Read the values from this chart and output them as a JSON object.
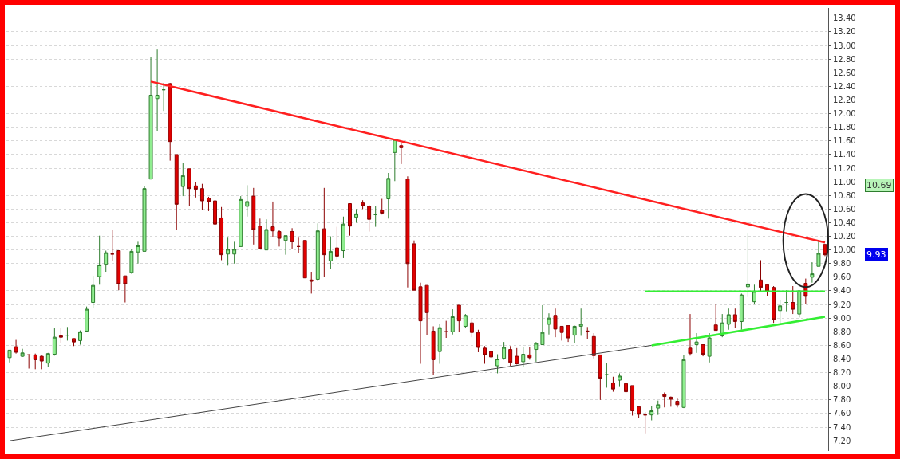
{
  "chart_data": {
    "type": "candlestick",
    "categories": [
      null,
      null,
      null,
      null,
      null,
      null,
      null,
      null,
      null,
      null,
      null,
      null,
      null,
      null,
      null,
      null,
      null,
      null,
      null,
      null,
      null,
      null,
      null,
      null,
      null,
      null,
      null,
      null,
      null,
      null,
      null,
      null,
      null,
      null,
      null,
      null,
      null,
      null,
      null,
      null,
      null,
      null,
      null,
      null,
      null,
      null,
      null,
      null,
      null,
      null,
      null,
      null,
      null,
      null,
      null,
      null,
      null,
      null,
      null,
      null,
      null,
      null,
      null,
      null,
      null,
      null,
      null,
      null,
      null,
      null,
      null,
      null,
      null,
      null,
      null,
      null,
      null,
      null,
      null,
      null,
      null,
      null,
      null,
      null,
      null,
      null,
      null,
      null,
      null,
      null,
      null,
      null,
      null,
      null,
      null,
      null,
      null,
      null,
      null,
      null,
      null,
      null,
      null,
      null,
      null,
      null,
      null,
      null,
      null,
      null,
      null,
      null,
      null,
      null,
      null,
      null,
      null,
      null,
      null,
      null,
      null,
      null,
      null,
      null,
      null,
      null,
      null,
      null
    ],
    "ohlc": [
      [
        8.42,
        8.53,
        8.35,
        8.53
      ],
      [
        8.58,
        8.68,
        8.48,
        8.5
      ],
      [
        8.44,
        8.55,
        8.43,
        8.49
      ],
      [
        8.46,
        8.47,
        8.26,
        8.46
      ],
      [
        8.46,
        8.48,
        8.25,
        8.39
      ],
      [
        8.44,
        8.45,
        8.25,
        8.37
      ],
      [
        8.34,
        8.49,
        8.28,
        8.48
      ],
      [
        8.47,
        8.85,
        8.45,
        8.72
      ],
      [
        8.74,
        8.85,
        8.64,
        8.72
      ],
      [
        8.75,
        8.87,
        8.67,
        8.75
      ],
      [
        8.7,
        8.7,
        8.59,
        8.65
      ],
      [
        8.67,
        8.82,
        8.61,
        8.8
      ],
      [
        8.81,
        9.17,
        8.8,
        9.13
      ],
      [
        9.23,
        9.62,
        9.15,
        9.48
      ],
      [
        9.61,
        10.21,
        9.49,
        9.78
      ],
      [
        9.79,
        9.99,
        9.68,
        9.96
      ],
      [
        9.94,
        10.3,
        9.84,
        9.94
      ],
      [
        9.99,
        9.99,
        9.41,
        9.5
      ],
      [
        9.62,
        9.62,
        9.23,
        9.5
      ],
      [
        9.67,
        10.01,
        9.65,
        9.98
      ],
      [
        9.97,
        10.12,
        9.8,
        10.06
      ],
      [
        9.98,
        10.94,
        9.98,
        10.9
      ],
      [
        11.04,
        12.83,
        11.04,
        12.27
      ],
      [
        12.22,
        12.94,
        11.74,
        12.27
      ],
      [
        12.35,
        12.45,
        12.04,
        12.35
      ],
      [
        12.44,
        12.45,
        11.31,
        11.59
      ],
      [
        11.4,
        11.4,
        10.3,
        10.67
      ],
      [
        10.93,
        11.27,
        10.79,
        11.09
      ],
      [
        11.19,
        11.19,
        10.65,
        10.9
      ],
      [
        10.94,
        10.99,
        10.77,
        10.89
      ],
      [
        10.9,
        10.97,
        10.59,
        10.72
      ],
      [
        10.76,
        10.78,
        10.57,
        10.71
      ],
      [
        10.72,
        10.72,
        10.3,
        10.38
      ],
      [
        10.47,
        10.63,
        9.85,
        9.93
      ],
      [
        9.94,
        10.18,
        9.77,
        10.01
      ],
      [
        9.94,
        10.12,
        9.8,
        10.01
      ],
      [
        10.05,
        10.79,
        10.05,
        10.74
      ],
      [
        10.64,
        10.95,
        10.49,
        10.71
      ],
      [
        10.79,
        10.91,
        10.08,
        10.3
      ],
      [
        10.35,
        10.46,
        10.01,
        10.02
      ],
      [
        10.0,
        10.45,
        10.0,
        10.3
      ],
      [
        10.34,
        10.71,
        10.19,
        10.28
      ],
      [
        10.27,
        10.3,
        10.05,
        10.17
      ],
      [
        10.14,
        10.21,
        9.93,
        10.21
      ],
      [
        10.27,
        10.32,
        10.02,
        10.12
      ],
      [
        10.05,
        10.18,
        9.96,
        10.05
      ],
      [
        10.14,
        10.14,
        9.59,
        9.59
      ],
      [
        9.56,
        9.68,
        9.36,
        9.54
      ],
      [
        9.57,
        10.39,
        9.54,
        10.28
      ],
      [
        10.31,
        10.91,
        9.61,
        9.93
      ],
      [
        9.84,
        10.2,
        9.72,
        9.98
      ],
      [
        10.03,
        10.34,
        9.86,
        9.91
      ],
      [
        9.99,
        10.49,
        9.88,
        10.38
      ],
      [
        10.68,
        10.68,
        10.21,
        10.35
      ],
      [
        10.48,
        10.6,
        10.4,
        10.53
      ],
      [
        10.69,
        10.73,
        10.6,
        10.65
      ],
      [
        10.64,
        10.66,
        10.27,
        10.45
      ],
      [
        10.52,
        10.64,
        10.34,
        10.52
      ],
      [
        10.58,
        10.75,
        10.52,
        10.54
      ],
      [
        10.75,
        11.13,
        10.46,
        11.05
      ],
      [
        11.43,
        11.62,
        11.01,
        11.62
      ],
      [
        11.53,
        11.57,
        11.26,
        11.5
      ],
      [
        11.04,
        11.08,
        9.45,
        9.8
      ],
      [
        10.09,
        10.14,
        9.41,
        9.41
      ],
      [
        9.46,
        9.52,
        8.33,
        8.96
      ],
      [
        9.48,
        9.48,
        8.75,
        9.08
      ],
      [
        8.81,
        8.88,
        8.17,
        8.39
      ],
      [
        8.51,
        8.92,
        8.33,
        8.86
      ],
      [
        8.8,
        8.96,
        8.71,
        8.8
      ],
      [
        8.8,
        9.13,
        8.76,
        9.02
      ],
      [
        9.19,
        9.19,
        8.8,
        8.96
      ],
      [
        8.88,
        9.06,
        8.85,
        9.04
      ],
      [
        8.93,
        8.99,
        8.72,
        8.79
      ],
      [
        8.79,
        8.83,
        8.5,
        8.57
      ],
      [
        8.56,
        8.59,
        8.33,
        8.46
      ],
      [
        8.51,
        8.51,
        8.4,
        8.43
      ],
      [
        8.3,
        8.47,
        8.19,
        8.4
      ],
      [
        8.41,
        8.65,
        8.39,
        8.57
      ],
      [
        8.54,
        8.59,
        8.3,
        8.35
      ],
      [
        8.44,
        8.56,
        8.32,
        8.33
      ],
      [
        8.36,
        8.57,
        8.28,
        8.47
      ],
      [
        8.46,
        8.58,
        8.39,
        8.42
      ],
      [
        8.54,
        8.65,
        8.36,
        8.63
      ],
      [
        8.61,
        9.19,
        8.61,
        8.79
      ],
      [
        8.91,
        9.07,
        8.76,
        9.0
      ],
      [
        9.04,
        9.14,
        8.72,
        8.84
      ],
      [
        8.88,
        8.88,
        8.67,
        8.79
      ],
      [
        8.89,
        8.89,
        8.65,
        8.71
      ],
      [
        8.75,
        8.89,
        8.63,
        8.88
      ],
      [
        8.88,
        9.14,
        8.74,
        8.91
      ],
      [
        8.81,
        8.87,
        8.69,
        8.81
      ],
      [
        8.73,
        8.78,
        8.41,
        8.45
      ],
      [
        8.46,
        8.46,
        7.8,
        8.12
      ],
      [
        8.17,
        8.34,
        7.98,
        8.17
      ],
      [
        8.05,
        8.14,
        7.92,
        7.96
      ],
      [
        8.09,
        8.19,
        7.99,
        8.15
      ],
      [
        8.04,
        8.04,
        7.89,
        7.92
      ],
      [
        8.01,
        8.01,
        7.57,
        7.64
      ],
      [
        7.7,
        7.7,
        7.54,
        7.59
      ],
      [
        7.58,
        7.62,
        7.31,
        7.58
      ],
      [
        7.58,
        7.71,
        7.5,
        7.64
      ],
      [
        7.68,
        7.79,
        7.58,
        7.73
      ],
      [
        7.88,
        7.91,
        7.69,
        7.85
      ],
      [
        7.84,
        7.85,
        7.7,
        7.81
      ],
      [
        7.78,
        7.82,
        7.69,
        7.73
      ],
      [
        7.69,
        8.46,
        7.68,
        8.39
      ],
      [
        8.56,
        9.06,
        8.45,
        8.48
      ],
      [
        8.61,
        8.78,
        8.49,
        8.65
      ],
      [
        8.61,
        8.61,
        8.44,
        8.47
      ],
      [
        8.44,
        8.78,
        8.35,
        8.71
      ],
      [
        8.9,
        9.2,
        8.82,
        8.82
      ],
      [
        8.74,
        9.06,
        8.72,
        8.93
      ],
      [
        8.91,
        9.14,
        8.83,
        9.05
      ],
      [
        9.05,
        9.14,
        8.86,
        8.95
      ],
      [
        8.95,
        9.36,
        8.83,
        9.34
      ],
      [
        9.46,
        10.24,
        9.31,
        9.5
      ],
      [
        9.24,
        9.49,
        9.2,
        9.39
      ],
      [
        9.56,
        9.85,
        9.4,
        9.45
      ],
      [
        9.49,
        9.5,
        9.33,
        9.39
      ],
      [
        9.45,
        9.47,
        8.93,
        8.98
      ],
      [
        9.11,
        9.27,
        8.92,
        9.18
      ],
      [
        9.23,
        9.41,
        9.1,
        9.23
      ],
      [
        9.23,
        9.47,
        9.06,
        9.13
      ],
      [
        9.06,
        9.41,
        9.01,
        9.4
      ],
      [
        9.51,
        9.58,
        9.21,
        9.32
      ],
      [
        9.6,
        9.82,
        9.52,
        9.65
      ],
      [
        9.76,
        10.13,
        9.76,
        9.95
      ],
      [
        10.08,
        10.09,
        9.91,
        9.93
      ]
    ],
    "series": [
      {
        "type": "line",
        "color": "#ff2020",
        "values": [
          null,
          null,
          null,
          null,
          null,
          null,
          null,
          null,
          null,
          null,
          null,
          null,
          null,
          null,
          null,
          null,
          null,
          null,
          null,
          null,
          null,
          null,
          12.47,
          null,
          null,
          null,
          null,
          null,
          null,
          null,
          null,
          null,
          null,
          null,
          null,
          null,
          null,
          null,
          null,
          null,
          null,
          null,
          null,
          null,
          null,
          null,
          null,
          null,
          null,
          null,
          null,
          null,
          null,
          null,
          null,
          null,
          null,
          null,
          null,
          null,
          null,
          null,
          null,
          null,
          null,
          null,
          null,
          null,
          null,
          null,
          null,
          null,
          null,
          null,
          null,
          null,
          null,
          null,
          null,
          null,
          null,
          null,
          null,
          null,
          null,
          null,
          null,
          null,
          null,
          null,
          null,
          null,
          null,
          null,
          null,
          null,
          null,
          null,
          null,
          null,
          null,
          null,
          null,
          null,
          null,
          null,
          null,
          null,
          null,
          null,
          null,
          null,
          null,
          null,
          null,
          null,
          null,
          null,
          null,
          null,
          null,
          null,
          null,
          null,
          null,
          null,
          null,
          10.11
        ]
      },
      {
        "type": "line",
        "color": "#444444",
        "values": [
          7.2,
          null,
          null,
          null,
          null,
          null,
          null,
          null,
          null,
          null,
          null,
          null,
          null,
          null,
          null,
          null,
          null,
          null,
          null,
          null,
          null,
          null,
          null,
          null,
          null,
          null,
          null,
          null,
          null,
          null,
          null,
          null,
          null,
          null,
          null,
          null,
          null,
          null,
          null,
          null,
          null,
          null,
          null,
          null,
          null,
          null,
          null,
          null,
          null,
          null,
          null,
          null,
          null,
          null,
          null,
          null,
          null,
          null,
          null,
          null,
          null,
          null,
          null,
          null,
          null,
          null,
          null,
          null,
          null,
          null,
          null,
          null,
          null,
          null,
          null,
          null,
          null,
          null,
          null,
          null,
          null,
          null,
          null,
          null,
          null,
          null,
          null,
          null,
          null,
          null,
          null,
          null,
          null,
          null,
          null,
          null,
          null,
          null,
          null,
          null,
          8.6,
          null,
          null,
          null,
          null,
          null,
          null,
          null,
          null,
          null,
          null,
          null,
          null,
          null,
          null,
          null,
          null,
          null,
          null,
          null,
          null,
          null,
          null,
          null,
          null,
          null,
          null,
          null
        ]
      },
      {
        "type": "line",
        "color": "#33ee33",
        "values": [
          null,
          null,
          null,
          null,
          null,
          null,
          null,
          null,
          null,
          null,
          null,
          null,
          null,
          null,
          null,
          null,
          null,
          null,
          null,
          null,
          null,
          null,
          null,
          null,
          null,
          null,
          null,
          null,
          null,
          null,
          null,
          null,
          null,
          null,
          null,
          null,
          null,
          null,
          null,
          null,
          null,
          null,
          null,
          null,
          null,
          null,
          null,
          null,
          null,
          null,
          null,
          null,
          null,
          null,
          null,
          null,
          null,
          null,
          null,
          null,
          null,
          null,
          null,
          null,
          null,
          null,
          null,
          null,
          null,
          null,
          null,
          null,
          null,
          null,
          null,
          null,
          null,
          null,
          null,
          null,
          null,
          null,
          null,
          null,
          null,
          null,
          null,
          null,
          null,
          null,
          null,
          null,
          null,
          null,
          null,
          null,
          null,
          null,
          null,
          null,
          8.6,
          null,
          null,
          null,
          null,
          null,
          null,
          null,
          null,
          null,
          null,
          null,
          null,
          null,
          null,
          null,
          null,
          null,
          null,
          null,
          null,
          null,
          null,
          null,
          null,
          null,
          null,
          9.02
        ]
      },
      {
        "type": "line",
        "color": "#33ee33",
        "values": [
          null,
          null,
          null,
          null,
          null,
          null,
          null,
          null,
          null,
          null,
          null,
          null,
          null,
          null,
          null,
          null,
          null,
          null,
          null,
          null,
          null,
          null,
          null,
          null,
          null,
          null,
          null,
          null,
          null,
          null,
          null,
          null,
          null,
          null,
          null,
          null,
          null,
          null,
          null,
          null,
          null,
          null,
          null,
          null,
          null,
          null,
          null,
          null,
          null,
          null,
          null,
          null,
          null,
          null,
          null,
          null,
          null,
          null,
          null,
          null,
          null,
          null,
          null,
          null,
          null,
          null,
          null,
          null,
          null,
          null,
          null,
          null,
          null,
          null,
          null,
          null,
          null,
          null,
          null,
          null,
          null,
          null,
          null,
          null,
          null,
          null,
          null,
          null,
          null,
          null,
          null,
          null,
          null,
          null,
          null,
          null,
          null,
          null,
          null,
          9.39,
          null,
          null,
          null,
          null,
          null,
          null,
          null,
          null,
          null,
          null,
          null,
          null,
          null,
          null,
          null,
          null,
          null,
          null,
          null,
          null,
          null,
          null,
          null,
          null,
          null,
          null,
          null,
          9.39
        ]
      }
    ],
    "ylim": [
      7.05,
      13.55
    ],
    "yticks": [
      {
        "value": 7.2,
        "label": "7.20"
      },
      {
        "value": 7.4,
        "label": "7.40"
      },
      {
        "value": 7.6,
        "label": "7.60"
      },
      {
        "value": 7.8,
        "label": "7.80"
      },
      {
        "value": 8,
        "label": "8.00"
      },
      {
        "value": 8.2,
        "label": "8.20"
      },
      {
        "value": 8.4,
        "label": "8.40"
      },
      {
        "value": 8.6,
        "label": "8.60"
      },
      {
        "value": 8.8,
        "label": "8.80"
      },
      {
        "value": 9,
        "label": "9.00"
      },
      {
        "value": 9.2,
        "label": "9.20"
      },
      {
        "value": 9.4,
        "label": "9.40"
      },
      {
        "value": 9.6,
        "label": "9.60"
      },
      {
        "value": 9.8,
        "label": "9.80"
      },
      {
        "value": 10,
        "label": "10.00"
      },
      {
        "value": 10.2,
        "label": "10.20"
      },
      {
        "value": 10.4,
        "label": "10.40"
      },
      {
        "value": 10.6,
        "label": "10.60"
      },
      {
        "value": 10.8,
        "label": "10.80"
      },
      {
        "value": 11,
        "label": "11.00"
      },
      {
        "value": 11.2,
        "label": "11.20"
      },
      {
        "value": 11.4,
        "label": "11.40"
      },
      {
        "value": 11.6,
        "label": "11.60"
      },
      {
        "value": 11.8,
        "label": "11.80"
      },
      {
        "value": 12,
        "label": "12.00"
      },
      {
        "value": 12.2,
        "label": "12.20"
      },
      {
        "value": 12.4,
        "label": "12.40"
      },
      {
        "value": 12.6,
        "label": "12.60"
      },
      {
        "value": 12.8,
        "label": "12.80"
      },
      {
        "value": 13,
        "label": "13.00"
      },
      {
        "value": 13.2,
        "label": "13.20"
      },
      {
        "value": 13.4,
        "label": "13.40"
      }
    ],
    "annotations": [
      "10.69",
      "9.93"
    ],
    "grid": "y",
    "tick_labels": "y",
    "marker": "none",
    "line_style": "solid"
  }
}
